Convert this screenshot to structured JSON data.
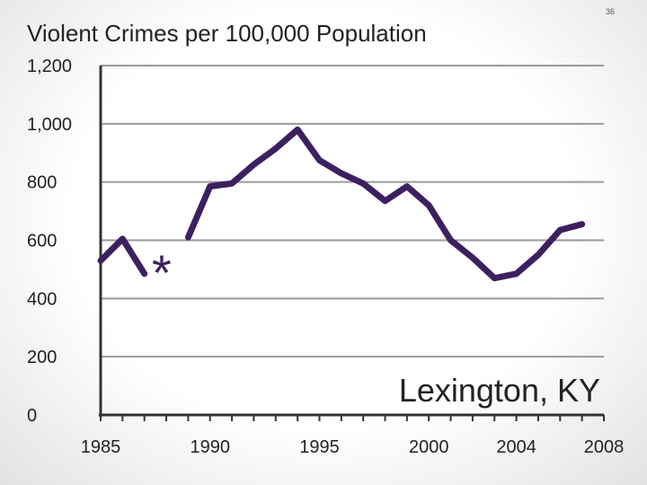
{
  "page_number": "36",
  "chart_data": {
    "type": "line",
    "title": "Violent Crimes per 100,000 Population",
    "xlabel": "",
    "ylabel": "",
    "xlim": [
      1985,
      2008
    ],
    "ylim": [
      0,
      1200
    ],
    "x_ticks": [
      "1985",
      "1990",
      "1995",
      "2000",
      "2004",
      "2008"
    ],
    "x_tick_values": [
      1985,
      1990,
      1995,
      2000,
      2004,
      2008
    ],
    "y_ticks": [
      "0",
      "200",
      "400",
      "600",
      "800",
      "1,000",
      "1,200"
    ],
    "y_tick_values": [
      0,
      200,
      400,
      600,
      800,
      1000,
      1200
    ],
    "grid": true,
    "line_color": "#3d2060",
    "series": [
      {
        "segments": [
          {
            "x": [
              1985,
              1986,
              1987
            ],
            "y": [
              530,
              605,
              485
            ]
          },
          {
            "x": [
              1989,
              1990,
              1991,
              1992,
              1993,
              1994,
              1995,
              1996,
              1997,
              1998,
              1999,
              2000,
              2001,
              2002,
              2003,
              2004,
              2005,
              2006,
              2007
            ],
            "y": [
              610,
              785,
              795,
              860,
              915,
              980,
              875,
              830,
              795,
              735,
              785,
              720,
              600,
              540,
              470,
              485,
              550,
              635,
              655
            ]
          }
        ]
      }
    ],
    "annotations": [
      {
        "text": "*",
        "x": 1988,
        "y": 540
      },
      {
        "text": "Lexington, KY",
        "x": 2002,
        "y": 80
      }
    ]
  }
}
